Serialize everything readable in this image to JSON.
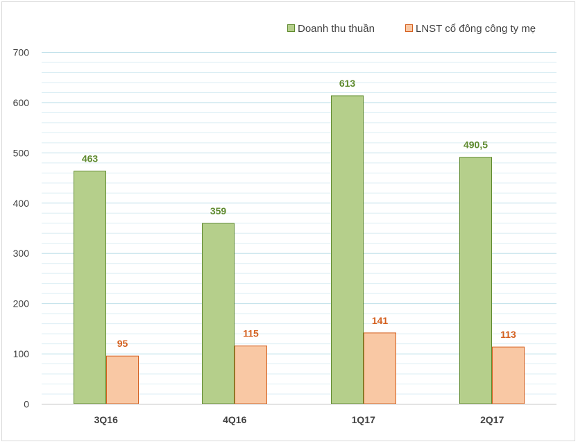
{
  "chart_data": {
    "type": "bar",
    "categories": [
      "3Q16",
      "4Q16",
      "1Q17",
      "2Q17"
    ],
    "series": [
      {
        "name": "Doanh thu thuần",
        "values": [
          463,
          359,
          613,
          490.5
        ],
        "labels": [
          "463",
          "359",
          "613",
          "490,5"
        ],
        "color": "#b5cf8b",
        "border": "#5f8a2e",
        "label_color": "#5f8a2e"
      },
      {
        "name": "LNST cổ đông công ty mẹ",
        "values": [
          95,
          115,
          141,
          113
        ],
        "labels": [
          "95",
          "115",
          "141",
          "113"
        ],
        "color": "#f9c8a4",
        "border": "#d45f1e",
        "label_color": "#d45f1e"
      }
    ],
    "ylim": [
      0,
      700
    ],
    "yticks": [
      "0",
      "100",
      "200",
      "300",
      "400",
      "500",
      "600",
      "700"
    ],
    "grid": true,
    "minor_grid": true,
    "legend": "top-right",
    "title": "",
    "xlabel": "",
    "ylabel": ""
  }
}
